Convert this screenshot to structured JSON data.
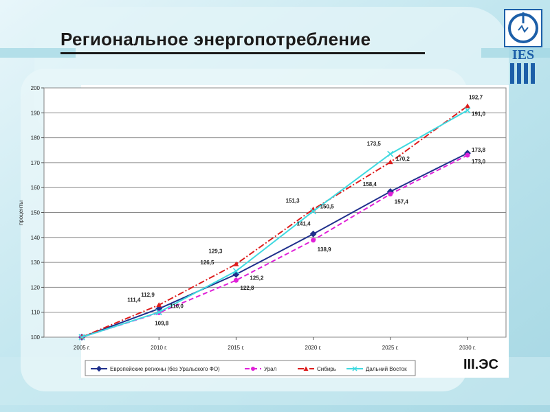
{
  "slide": {
    "title": "Региональное энергопотребление",
    "tag": "III.ЭС",
    "logo_text": "IES"
  },
  "colors": {
    "european": "#1f2f8c",
    "ural": "#e020d8",
    "siberia": "#dd1c1c",
    "far_east": "#3fd9e0"
  },
  "chart_data": {
    "type": "line",
    "ylabel": "проценты",
    "ylim": [
      100,
      200
    ],
    "yticks": [
      "100",
      "110",
      "120",
      "130",
      "140",
      "150",
      "160",
      "170",
      "180",
      "190",
      "200"
    ],
    "categories": [
      "2005 г.",
      "2010 г.",
      "2015 г.",
      "2020 г.",
      "2025 г.",
      "2030 г."
    ],
    "legend_position": "bottom",
    "grid": true,
    "series": [
      {
        "name": "Европейские регионы (без Уральского ФО)",
        "values": [
          100,
          111.4,
          125.2,
          141.4,
          158.4,
          173.8
        ],
        "labels": [
          "",
          "111,4",
          "125,2",
          "141,4",
          "158,4",
          "173,8"
        ]
      },
      {
        "name": "Урал",
        "values": [
          100,
          109.8,
          122.8,
          138.9,
          157.4,
          173.0
        ],
        "labels": [
          "",
          "109,8",
          "122,8",
          "138,9",
          "157,4",
          "173,0"
        ]
      },
      {
        "name": "Сибирь",
        "values": [
          100,
          112.9,
          129.3,
          151.3,
          170.2,
          192.7
        ],
        "labels": [
          "",
          "112,9",
          "129,3",
          "151,3",
          "170,2",
          "192,7"
        ]
      },
      {
        "name": "Дальний Восток",
        "values": [
          100,
          110.0,
          126.5,
          150.5,
          173.5,
          191.0
        ],
        "labels": [
          "",
          "110,0",
          "126,5",
          "150,5",
          "173,5",
          "191,0"
        ]
      }
    ]
  }
}
